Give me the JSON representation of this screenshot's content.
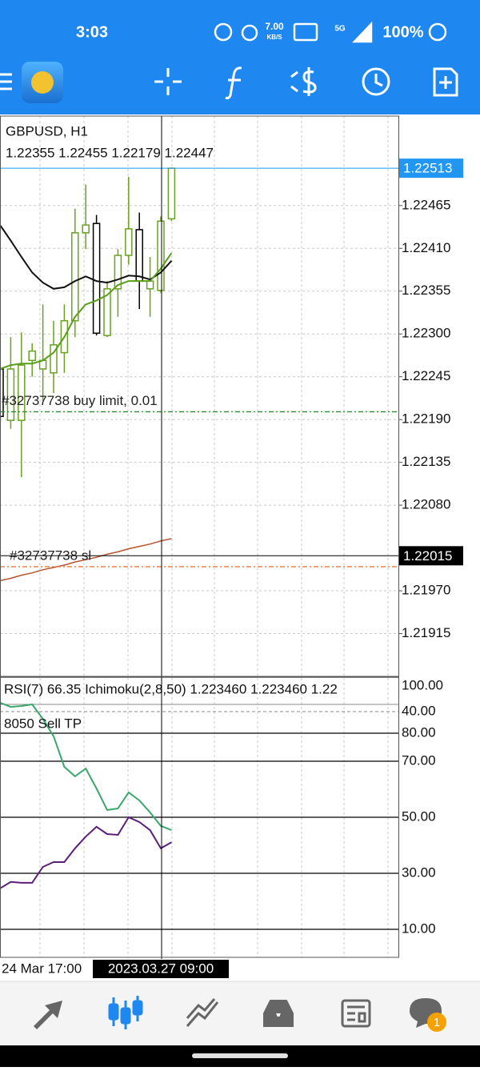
{
  "status_bar": {
    "time": "3:03",
    "net_speed": "7.00",
    "net_unit": "KB/S",
    "network": "5G",
    "battery": "100%"
  },
  "chart_data": [
    {
      "type": "candlestick",
      "title": "GBPUSD, H1",
      "subtitle": "1.22355 1.22455 1.22179 1.22447",
      "open": [
        1.22255,
        1.22189,
        1.22189,
        1.22266,
        1.22255,
        1.2225,
        1.22276,
        1.22317,
        1.2243,
        1.22442,
        1.22298,
        1.22358,
        1.22401,
        1.22434,
        1.22358,
        1.22356,
        1.22448
      ],
      "high": [
        1.22276,
        1.22296,
        1.22302,
        1.22288,
        1.22338,
        1.22317,
        1.22338,
        1.22461,
        1.22492,
        1.22453,
        1.22368,
        1.22409,
        1.22502,
        1.22456,
        1.22399,
        1.22451,
        1.22514
      ],
      "low": [
        1.22127,
        1.22178,
        1.22116,
        1.22245,
        1.22214,
        1.22224,
        1.2225,
        1.22296,
        1.22409,
        1.22298,
        1.22296,
        1.22322,
        1.22389,
        1.22332,
        1.22322,
        1.22353,
        1.22445
      ],
      "close": [
        1.22194,
        1.22255,
        1.2226,
        1.22278,
        1.22266,
        1.22286,
        1.22317,
        1.2243,
        1.2244,
        1.22301,
        1.22358,
        1.22401,
        1.22435,
        1.22368,
        1.22368,
        1.22445,
        1.22513
      ],
      "up_color": "#6aa121",
      "down_color": "#000000",
      "series": [
        {
          "color": "#111111",
          "values": [
            1.2244,
            1.2242,
            1.22399,
            1.22379,
            1.22366,
            1.22358,
            1.2236,
            1.22368,
            1.22374,
            1.22368,
            1.22366,
            1.2237,
            1.22375,
            1.22374,
            1.2237,
            1.22379,
            1.22394
          ]
        },
        {
          "color": "#5a9e1c",
          "values": [
            1.22255,
            1.2226,
            1.22262,
            1.22262,
            1.22266,
            1.22276,
            1.22296,
            1.22322,
            1.22338,
            1.22343,
            1.2235,
            1.22363,
            1.22368,
            1.22368,
            1.22368,
            1.22384,
            1.22404
          ]
        },
        {
          "color": "#b5532e",
          "values": [
            1.21983,
            1.21986,
            1.2199,
            1.21993,
            1.21997,
            1.22,
            1.22003,
            1.22007,
            1.2201,
            1.22013,
            1.22017,
            1.2202,
            1.22024,
            1.22027,
            1.2203,
            1.22034,
            1.22037
          ]
        }
      ],
      "ylim": [
        1.2186,
        1.2258
      ],
      "yticks": [
        1.22465,
        {
          "value": 1.2241,
          "label": "1.22410"
        },
        1.22355,
        {
          "value": 1.223,
          "label": "1.22300"
        },
        1.22245,
        {
          "value": 1.2219,
          "label": "1.22190"
        },
        1.22135,
        {
          "value": 1.2208,
          "label": "1.22080"
        },
        {
          "value": 1.2197,
          "label": "1.21970"
        },
        1.21915
      ],
      "current_price": 1.22513,
      "current_color": "#2196f3",
      "orders": [
        {
          "label": "#32737738 buy limit, 0.01",
          "value": 1.222,
          "color": "#2e8b2e"
        },
        {
          "label": "#32737738 sl",
          "value": 1.22001,
          "color": "#e8793a"
        }
      ],
      "crosshair": {
        "value": 1.22015,
        "time": "2023.03.27 09:00"
      },
      "x_label": "24 Mar 17:00"
    },
    {
      "type": "line",
      "title": "RSI(7) 66.35 Ichimoku(2,8,50) 1.223460 1.223460 1.22",
      "subtitle": "8050 Sell TP",
      "series": [
        {
          "color": "#3aa86b",
          "values": [
            90.9,
            89.4,
            89.7,
            90.3,
            85.1,
            78.9,
            68.0,
            64.6,
            67.4,
            60.3,
            52.6,
            53.1,
            58.9,
            56.0,
            51.7,
            46.9,
            45.4
          ]
        },
        {
          "color": "#5b1f7a",
          "values": [
            24.6,
            26.9,
            26.6,
            26.6,
            32.3,
            34.0,
            34.0,
            38.9,
            43.1,
            46.6,
            44.0,
            43.7,
            50.0,
            48.3,
            45.4,
            38.9,
            41.1
          ]
        }
      ],
      "ylim": [
        0,
        100
      ],
      "yticks": [
        {
          "value": 100,
          "label": "100.00"
        },
        {
          "value": 80,
          "label": "80.00"
        },
        {
          "value": 70,
          "label": "70.00"
        },
        {
          "value": 50,
          "label": "50.00"
        },
        {
          "value": 30,
          "label": "30.00"
        },
        {
          "value": 10,
          "label": "10.00"
        }
      ],
      "levels": [
        {
          "value": 90.3,
          "color": "#888888"
        },
        {
          "value": 87.7,
          "color": "#888888",
          "label": "40.00"
        }
      ]
    }
  ],
  "bottom_nav": {
    "badge": "1"
  }
}
